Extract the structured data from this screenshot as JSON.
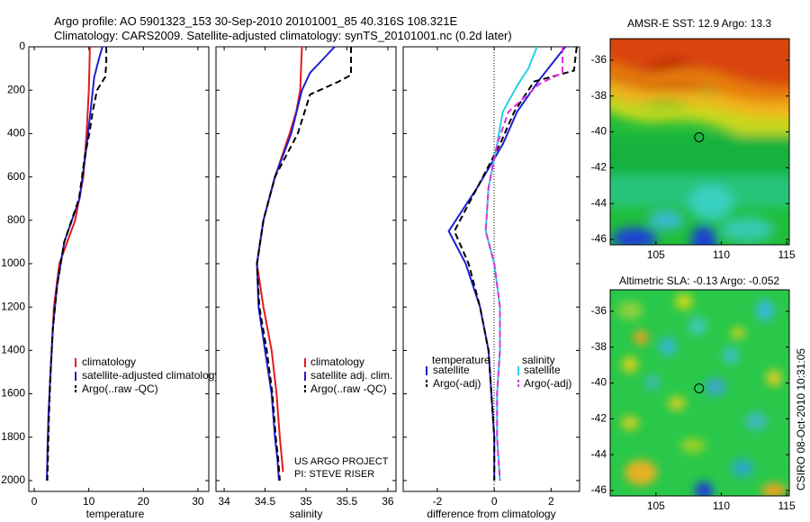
{
  "title_line1": "Argo profile: AO 5901323_153 30-Sep-2010 20101001_85 40.316S 108.321E",
  "title_line2": "Climatology: CARS2009. Satellite-adjusted climatology: synTS_20101001.nc (0.2d later)",
  "credit": [
    "US ARGO PROJECT",
    "PI: STEVE RISER"
  ],
  "side_label": "CSIRO 08-Oct-2010 10:31:05",
  "colors": {
    "clim": "#e41a1c",
    "sat": "#1f1fd0",
    "argo": "#000000",
    "sat_sal": "#22d3e6",
    "argo_sal": "#e030e0"
  },
  "chart_data": [
    {
      "type": "line",
      "xlabel": "temperature",
      "ylabel": "",
      "xlim": [
        -1,
        32
      ],
      "ylim": [
        2050,
        0
      ],
      "y_inverted": true,
      "xticks": [
        0,
        10,
        20,
        30
      ],
      "yticks": [
        0,
        200,
        400,
        600,
        800,
        1000,
        1200,
        1400,
        1600,
        1800,
        2000
      ],
      "legend": [
        "climatology",
        "satellite-adjusted climatology",
        "Argo(..raw -QC)"
      ],
      "legend_position": "lower-right",
      "series": [
        {
          "name": "climatology",
          "color_key": "clim",
          "dash": "solid",
          "x": [
            10.2,
            10.1,
            10.0,
            9.6,
            9.0,
            7.5,
            4.6,
            3.6,
            3.2,
            2.8,
            2.5,
            2.4
          ],
          "y": [
            0,
            100,
            200,
            400,
            600,
            800,
            1000,
            1200,
            1400,
            1600,
            1800,
            1880
          ]
        },
        {
          "name": "satellite-adjusted climatology",
          "color_key": "sat",
          "dash": "solid",
          "x": [
            12.5,
            11.8,
            11.0,
            10.3,
            9.4,
            8.3,
            5.5,
            4.2,
            3.4,
            3.0,
            2.6,
            2.4,
            2.3
          ],
          "y": [
            0,
            60,
            140,
            300,
            500,
            700,
            900,
            1100,
            1300,
            1500,
            1700,
            1900,
            2000
          ]
        },
        {
          "name": "Argo(..raw -QC)",
          "color_key": "argo",
          "dash": "dashed",
          "x": [
            13.2,
            13.2,
            13.0,
            11.5,
            10.7,
            10.1,
            9.3,
            8.2,
            5.5,
            4.2,
            3.4,
            3.0,
            2.7,
            2.5,
            2.4
          ],
          "y": [
            0,
            80,
            140,
            200,
            300,
            400,
            500,
            700,
            900,
            1100,
            1300,
            1500,
            1700,
            1900,
            2000
          ]
        }
      ]
    },
    {
      "type": "line",
      "xlabel": "salinity",
      "ylabel": "",
      "xlim": [
        33.9,
        36.1
      ],
      "ylim": [
        2050,
        0
      ],
      "y_inverted": true,
      "xticks": [
        34,
        34.5,
        35,
        35.5,
        36
      ],
      "xtick_labels": [
        "34",
        "34.5",
        "35",
        "35.5",
        "36"
      ],
      "legend": [
        "climatology",
        "satellite adj. clim.",
        "Argo(..raw -QC)"
      ],
      "legend_position": "lower-right",
      "series": [
        {
          "name": "climatology",
          "color_key": "clim",
          "dash": "solid",
          "x": [
            34.95,
            34.94,
            34.93,
            34.88,
            34.8,
            34.62,
            34.48,
            34.4,
            34.48,
            34.58,
            34.64,
            34.68,
            34.72
          ],
          "y": [
            0,
            100,
            200,
            300,
            400,
            600,
            800,
            1000,
            1200,
            1400,
            1600,
            1800,
            1960
          ]
        },
        {
          "name": "satellite adj. clim.",
          "color_key": "sat",
          "dash": "solid",
          "x": [
            35.35,
            35.2,
            35.05,
            34.95,
            34.82,
            34.62,
            34.48,
            34.4,
            34.42,
            34.5,
            34.58,
            34.62,
            34.65,
            34.67
          ],
          "y": [
            0,
            60,
            120,
            200,
            400,
            600,
            800,
            1000,
            1200,
            1400,
            1600,
            1800,
            1900,
            2000
          ]
        },
        {
          "name": "Argo(..raw -QC)",
          "color_key": "argo",
          "dash": "dashed",
          "x": [
            35.55,
            35.55,
            35.4,
            35.05,
            34.9,
            34.62,
            34.48,
            34.4,
            34.43,
            34.52,
            34.59,
            34.63,
            34.66,
            34.68
          ],
          "y": [
            0,
            130,
            160,
            220,
            400,
            600,
            800,
            1000,
            1200,
            1400,
            1600,
            1800,
            1900,
            2000
          ]
        }
      ]
    },
    {
      "type": "line",
      "xlabel": "difference from climatology",
      "ylabel": "",
      "xlim": [
        -3.2,
        3.0
      ],
      "ylim": [
        2050,
        0
      ],
      "y_inverted": true,
      "xticks": [
        -2,
        0,
        2
      ],
      "legend_groups": [
        {
          "title": "temperature",
          "items": [
            "satellite",
            "Argo(-adj)"
          ]
        },
        {
          "title": "salinity",
          "items": [
            "satellite",
            "Argo(-adj)"
          ]
        }
      ],
      "legend_position": "lower",
      "series": [
        {
          "name": "temperature satellite",
          "color_key": "sat",
          "dash": "solid",
          "x": [
            2.5,
            2.2,
            1.6,
            0.8,
            0.3,
            -0.6,
            -1.6,
            -1.0,
            -0.5,
            -0.2,
            -0.1,
            0.0,
            0.0
          ],
          "y": [
            0,
            50,
            150,
            300,
            450,
            650,
            850,
            1000,
            1200,
            1400,
            1600,
            1800,
            2000
          ]
        },
        {
          "name": "temperature Argo(-adj)",
          "color_key": "argo",
          "dash": "dashed",
          "x": [
            2.9,
            2.8,
            1.4,
            0.7,
            0.2,
            -0.6,
            -1.4,
            -0.9,
            -0.5,
            -0.2,
            -0.1,
            0.0,
            0.0
          ],
          "y": [
            0,
            110,
            160,
            300,
            450,
            650,
            850,
            1000,
            1200,
            1400,
            1600,
            1800,
            2000
          ]
        },
        {
          "name": "salinity satellite",
          "color_key": "sat_sal",
          "dash": "solid",
          "x": [
            1.5,
            1.2,
            0.8,
            0.3,
            0.1,
            -0.2,
            -0.3,
            0.0,
            0.2,
            0.2,
            0.1,
            0.1,
            0.2
          ],
          "y": [
            0,
            100,
            180,
            300,
            450,
            650,
            850,
            1000,
            1200,
            1400,
            1600,
            1800,
            2000
          ]
        },
        {
          "name": "salinity Argo(-adj)",
          "color_key": "argo_sal",
          "dash": "dashed",
          "x": [
            2.4,
            2.4,
            1.6,
            0.5,
            0.1,
            -0.2,
            -0.3,
            0.0,
            0.2,
            0.2,
            0.1,
            0.1,
            0.2
          ],
          "y": [
            0,
            120,
            170,
            300,
            450,
            650,
            850,
            1000,
            1200,
            1400,
            1600,
            1800,
            2000
          ]
        }
      ]
    },
    {
      "type": "heatmap",
      "title": "AMSR-E SST: 12.9 Argo: 13.3",
      "xlim": [
        101.5,
        115.2
      ],
      "ylim": [
        -46.3,
        -34.8
      ],
      "xticks": [
        105,
        110,
        115
      ],
      "yticks": [
        -36,
        -38,
        -40,
        -42,
        -44,
        -46
      ],
      "marker": {
        "lon": 108.3,
        "lat": -40.3
      }
    },
    {
      "type": "heatmap",
      "title": "Altimetric SLA: -0.13 Argo: -0.052",
      "xlim": [
        101.5,
        115.2
      ],
      "ylim": [
        -46.3,
        -34.8
      ],
      "xticks": [
        105,
        110,
        115
      ],
      "yticks": [
        -36,
        -38,
        -40,
        -42,
        -44,
        -46
      ],
      "marker": {
        "lon": 108.3,
        "lat": -40.3
      }
    }
  ]
}
